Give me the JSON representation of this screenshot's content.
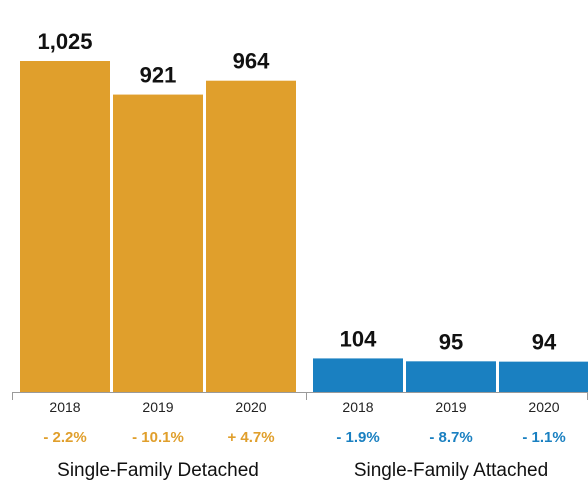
{
  "chart_data": {
    "type": "bar",
    "groups": [
      {
        "name": "Single-Family Detached",
        "color": "#E09F2C",
        "categories": [
          "2018",
          "2019",
          "2020"
        ],
        "values": [
          1025,
          921,
          964
        ],
        "value_labels": [
          "1,025",
          "921",
          "964"
        ],
        "changes": [
          "- 2.2%",
          "- 10.1%",
          "+ 4.7%"
        ]
      },
      {
        "name": "Single-Family Attached",
        "color": "#1A80C1",
        "categories": [
          "2018",
          "2019",
          "2020"
        ],
        "values": [
          104,
          95,
          94
        ],
        "value_labels": [
          "104",
          "95",
          "94"
        ],
        "changes": [
          "- 1.9%",
          "- 8.7%",
          "- 1.1%"
        ]
      }
    ],
    "ylim": [
      0,
      1100
    ],
    "grid": false
  }
}
